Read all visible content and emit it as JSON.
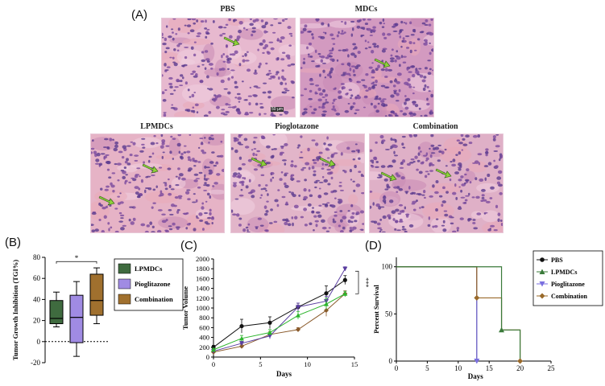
{
  "figure": {
    "panel_a": {
      "label": "(A)",
      "images": [
        {
          "title": "PBS",
          "scale_bar": "50 µm"
        },
        {
          "title": "MDCs"
        },
        {
          "title": "LPMDCs"
        },
        {
          "title": "Pioglotazone"
        },
        {
          "title": "Combination"
        }
      ]
    },
    "panel_b": {
      "label": "(B)"
    },
    "panel_c": {
      "label": "(C)"
    },
    "panel_d": {
      "label": "(D)"
    }
  },
  "chart_data": [
    {
      "type": "box",
      "ylabel": "Tumor Growth Inhibition (TGI%)",
      "ylim": [
        -20,
        80
      ],
      "yticks": [
        -20,
        0,
        20,
        40,
        60,
        80
      ],
      "significance": "*",
      "boxes": [
        {
          "name": "LPMDCs",
          "color": "#3f6b3f",
          "min": 14,
          "q1": 17,
          "median": 22,
          "q3": 39,
          "max": 47
        },
        {
          "name": "Pioglitazone",
          "color": "#a08be3",
          "min": -14,
          "q1": -1,
          "median": 23,
          "q3": 44,
          "max": 57
        },
        {
          "name": "Combination",
          "color": "#a0702e",
          "min": 17,
          "q1": 25,
          "median": 39,
          "q3": 64,
          "max": 70
        }
      ],
      "legend": [
        "LPMDCs",
        "Pioglitazone",
        "Combination"
      ]
    },
    {
      "type": "line",
      "xlabel": "Days",
      "ylabel": "Tumor Volume",
      "xlim": [
        0,
        15
      ],
      "ylim": [
        0,
        2000
      ],
      "xticks": [
        0,
        5,
        10,
        15
      ],
      "yticks": [
        0,
        200,
        400,
        600,
        800,
        1000,
        1200,
        1400,
        1600,
        1800,
        2000
      ],
      "significance": "***",
      "x": [
        0,
        3,
        6,
        9,
        12,
        14
      ],
      "series": [
        {
          "color": "#111111",
          "marker": "circle",
          "values": [
            200,
            630,
            700,
            1020,
            1300,
            1570
          ],
          "err": [
            40,
            140,
            120,
            80,
            150,
            90
          ]
        },
        {
          "color": "#8a5a2b",
          "marker": "diamond",
          "values": [
            100,
            220,
            460,
            560,
            950,
            1290
          ],
          "err": [
            20,
            40,
            60,
            40,
            120,
            60
          ]
        },
        {
          "color": "#5a3ea0",
          "marker": "triangle-down",
          "values": [
            120,
            280,
            430,
            1020,
            1140,
            1800
          ],
          "err": [
            20,
            40,
            60,
            80,
            100,
            40
          ]
        },
        {
          "color": "#2db52d",
          "marker": "triangle-up",
          "values": [
            150,
            380,
            500,
            850,
            1080,
            1290
          ],
          "err": [
            30,
            60,
            60,
            80,
            120,
            50
          ]
        }
      ]
    },
    {
      "type": "survival",
      "xlabel": "Days",
      "ylabel": "Percent Survival",
      "xlim": [
        0,
        25
      ],
      "ylim": [
        0,
        110
      ],
      "xticks": [
        0,
        5,
        10,
        15,
        20,
        25
      ],
      "yticks": [
        0,
        50,
        100
      ],
      "legend_position": "top-right",
      "series": [
        {
          "name": "PBS",
          "color": "#111111",
          "marker": "circle",
          "steps": [
            [
              0,
              100
            ],
            [
              13,
              100
            ],
            [
              13,
              0
            ]
          ]
        },
        {
          "name": "LPMDCs",
          "color": "#3a7a3a",
          "marker": "triangle-up",
          "steps": [
            [
              0,
              100
            ],
            [
              17,
              100
            ],
            [
              17,
              33
            ],
            [
              20,
              33
            ],
            [
              20,
              0
            ]
          ]
        },
        {
          "name": "Pioglitazone",
          "color": "#7a6fe0",
          "marker": "triangle-down",
          "steps": [
            [
              0,
              100
            ],
            [
              13,
              100
            ],
            [
              13,
              0
            ]
          ]
        },
        {
          "name": "Combination",
          "color": "#9a6a2a",
          "marker": "diamond",
          "steps": [
            [
              0,
              100
            ],
            [
              13,
              100
            ],
            [
              13,
              67
            ],
            [
              17,
              67
            ],
            [
              17,
              33
            ],
            [
              20,
              33
            ],
            [
              20,
              0
            ]
          ]
        }
      ],
      "markers": [
        {
          "series": 3,
          "x": 13,
          "y": 67
        },
        {
          "series": 1,
          "x": 17,
          "y": 33
        },
        {
          "series": 3,
          "x": 20,
          "y": 0
        },
        {
          "series": 2,
          "x": 13,
          "y": 0
        }
      ]
    }
  ]
}
